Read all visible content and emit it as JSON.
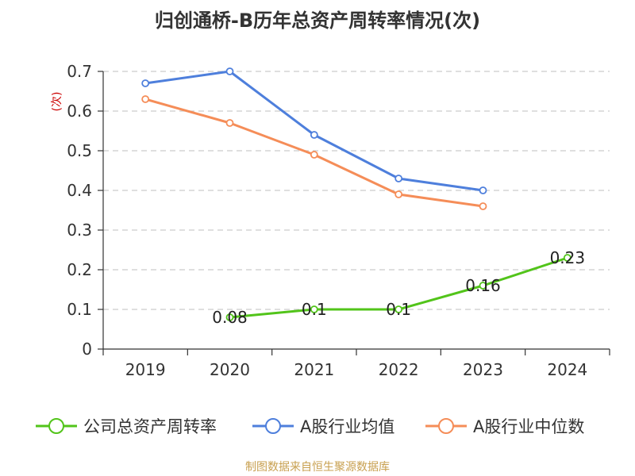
{
  "chart_data": {
    "type": "line",
    "title": "归创通桥-B历年总资产周转率情况(次)",
    "ylabel": "(次)",
    "xlabel": "",
    "categories": [
      "2019",
      "2020",
      "2021",
      "2022",
      "2023",
      "2024"
    ],
    "ylim": [
      0,
      0.7
    ],
    "yticks": [
      "0",
      "0.1",
      "0.2",
      "0.3",
      "0.4",
      "0.5",
      "0.6",
      "0.7"
    ],
    "grid": true,
    "legend_position": "bottom",
    "series": [
      {
        "name": "公司总资产周转率",
        "color": "#52c41a",
        "values": [
          null,
          0.08,
          0.1,
          0.1,
          0.16,
          0.23
        ],
        "labels": [
          null,
          "0.08",
          "0.1",
          "0.1",
          "0.16",
          "0.23"
        ]
      },
      {
        "name": "A股行业均值",
        "color": "#4e7fdc",
        "values": [
          0.67,
          0.7,
          0.54,
          0.43,
          0.4,
          null
        ]
      },
      {
        "name": "A股行业中位数",
        "color": "#f58d58",
        "values": [
          0.63,
          0.57,
          0.49,
          0.39,
          0.36,
          null
        ]
      }
    ]
  },
  "source": "制图数据来自恒生聚源数据库",
  "colors": {
    "axis": "#333333",
    "grid": "#cccccc",
    "ylabel": "#cc0000"
  }
}
